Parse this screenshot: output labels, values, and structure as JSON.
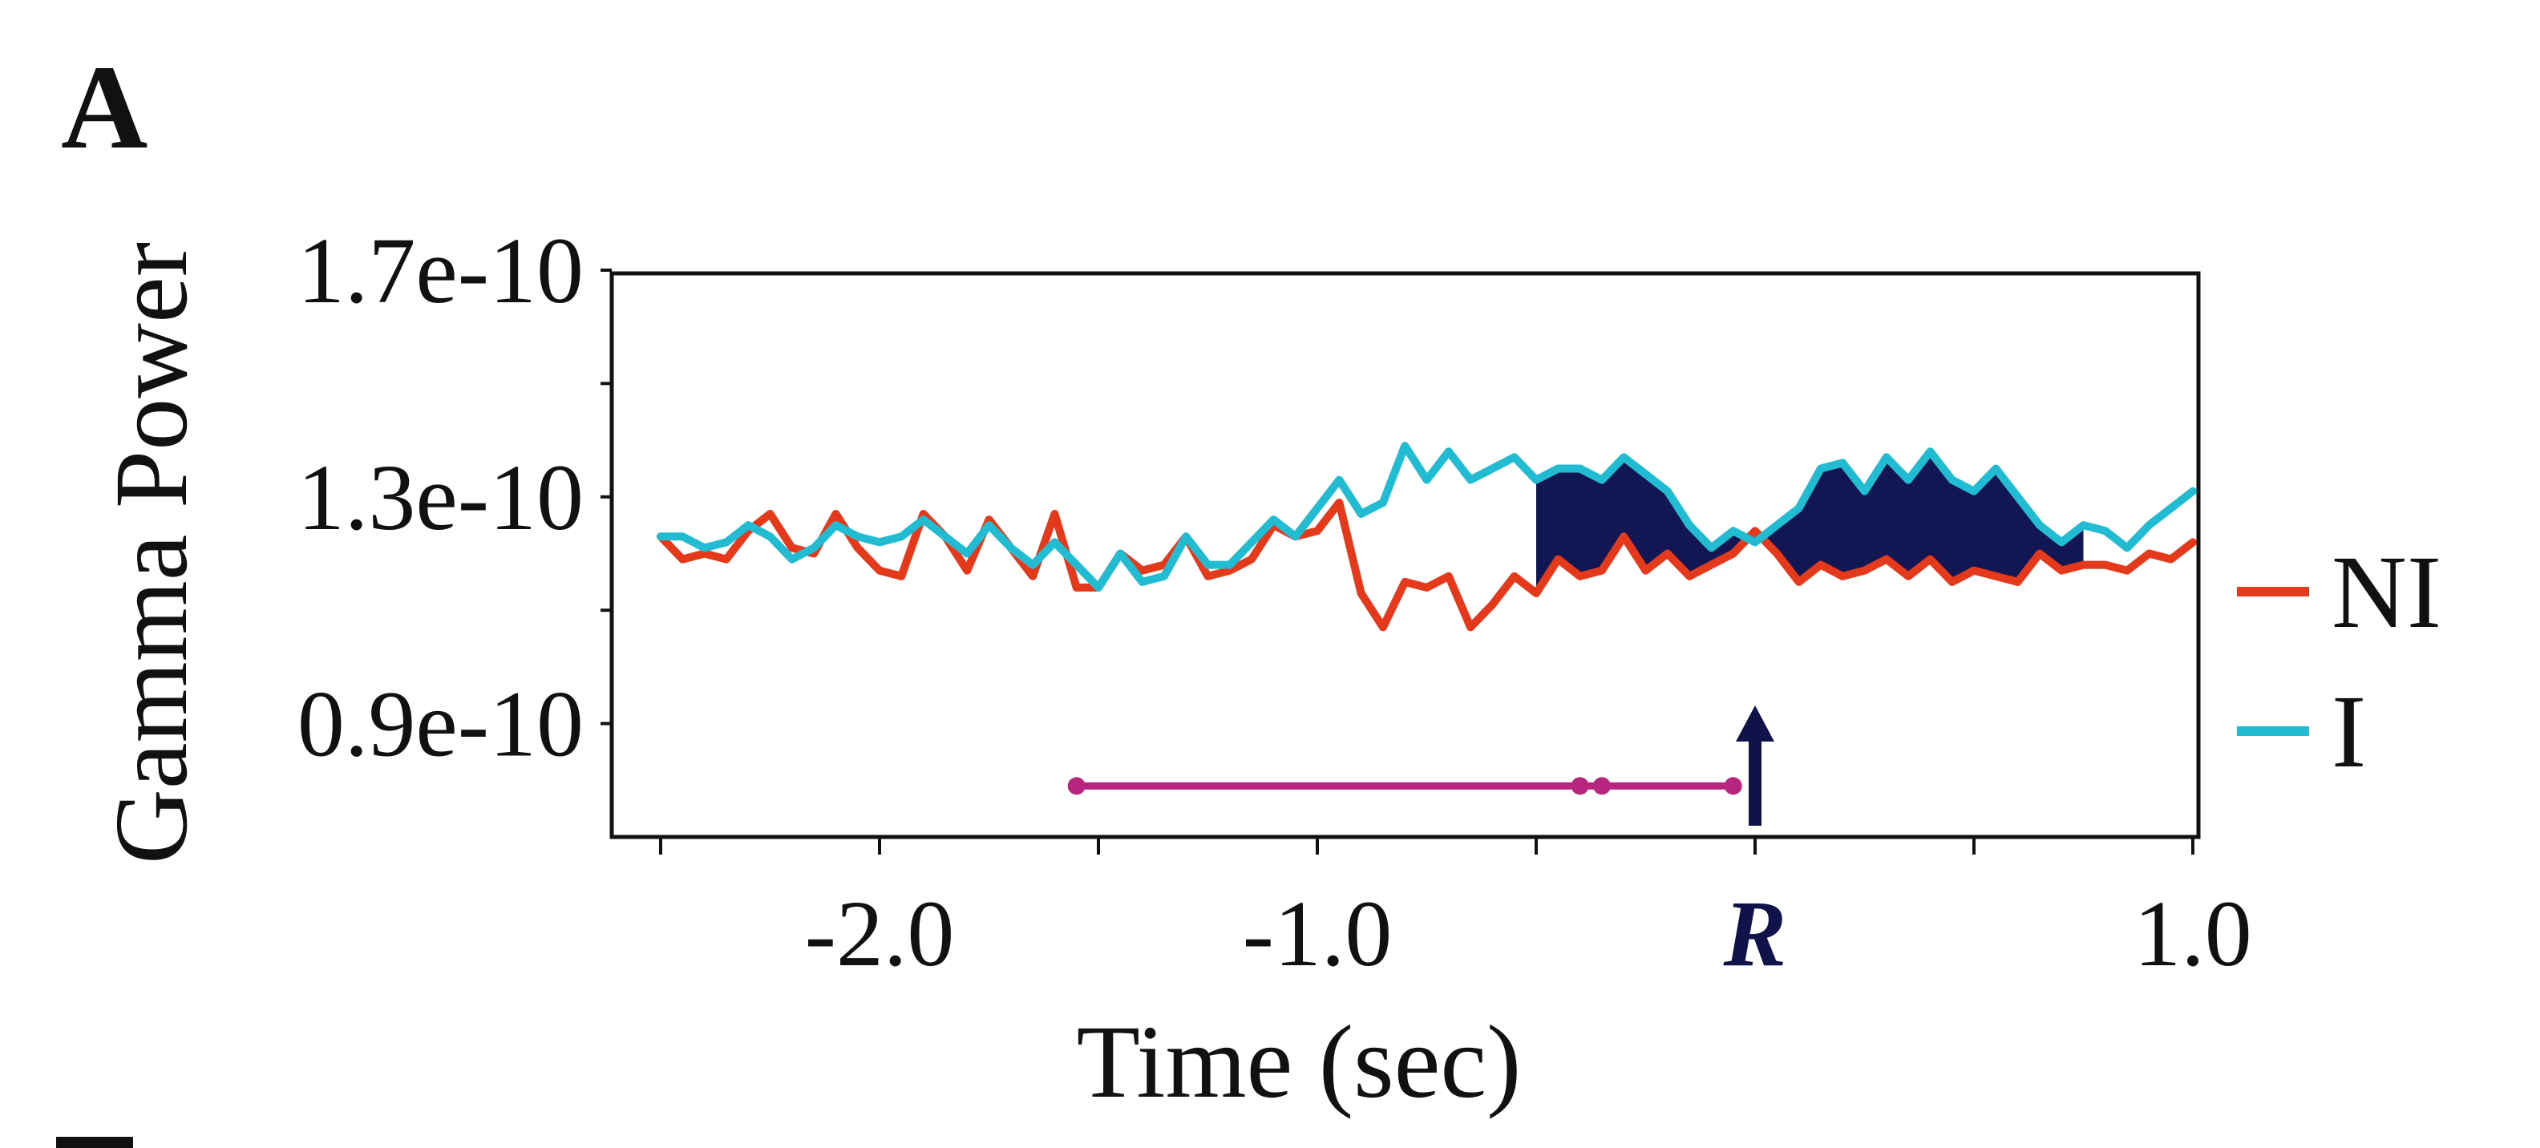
{
  "panel_label": "A",
  "chart_data": {
    "type": "line",
    "title": "",
    "xlabel": "Time (sec)",
    "ylabel": "Gamma Power",
    "xlim": [
      -2.5,
      1.0
    ],
    "ylim": [
      7e-11,
      1.7e-10
    ],
    "x_ticks": [
      -2.5,
      -2.0,
      -1.5,
      -1.0,
      -0.5,
      0.0,
      0.5,
      1.0
    ],
    "x_tick_labels": [
      "-2.0",
      "-1.0",
      "R",
      "1.0"
    ],
    "x_tick_label_values": [
      -2.0,
      -1.0,
      0.0,
      1.0
    ],
    "y_ticks": [
      9e-11,
      1.1e-10,
      1.3e-10,
      1.5e-10,
      1.7e-10
    ],
    "y_tick_labels": [
      "1.7e-10",
      "1.3e-10",
      "0.9e-10"
    ],
    "y_tick_label_values": [
      1.7e-10,
      1.3e-10,
      9e-11
    ],
    "legend": [
      "NI",
      "I"
    ],
    "legend_position": "right",
    "colors": {
      "NI": "#e5391c",
      "I": "#22bcd2",
      "fill": "#121652",
      "bar": "#b7257e",
      "arrow": "#10124a"
    },
    "series": [
      {
        "name": "NI",
        "x": [
          -2.5,
          -2.45,
          -2.4,
          -2.35,
          -2.3,
          -2.25,
          -2.2,
          -2.15,
          -2.1,
          -2.05,
          -2.0,
          -1.95,
          -1.9,
          -1.85,
          -1.8,
          -1.75,
          -1.7,
          -1.65,
          -1.6,
          -1.55,
          -1.5,
          -1.45,
          -1.4,
          -1.35,
          -1.3,
          -1.25,
          -1.2,
          -1.15,
          -1.1,
          -1.05,
          -1.0,
          -0.95,
          -0.9,
          -0.85,
          -0.8,
          -0.75,
          -0.7,
          -0.65,
          -0.6,
          -0.55,
          -0.5,
          -0.45,
          -0.4,
          -0.35,
          -0.3,
          -0.25,
          -0.2,
          -0.15,
          -0.1,
          -0.05,
          0.0,
          0.05,
          0.1,
          0.15,
          0.2,
          0.25,
          0.3,
          0.35,
          0.4,
          0.45,
          0.5,
          0.55,
          0.6,
          0.65,
          0.7,
          0.75,
          0.8,
          0.85,
          0.9,
          0.95,
          1.0
        ],
        "values": [
          1.23e-10,
          1.19e-10,
          1.2e-10,
          1.19e-10,
          1.24e-10,
          1.27e-10,
          1.21e-10,
          1.2e-10,
          1.27e-10,
          1.21e-10,
          1.17e-10,
          1.16e-10,
          1.27e-10,
          1.23e-10,
          1.17e-10,
          1.26e-10,
          1.21e-10,
          1.16e-10,
          1.27e-10,
          1.14e-10,
          1.14e-10,
          1.2e-10,
          1.17e-10,
          1.18e-10,
          1.23e-10,
          1.16e-10,
          1.17e-10,
          1.19e-10,
          1.25e-10,
          1.23e-10,
          1.24e-10,
          1.29e-10,
          1.13e-10,
          1.07e-10,
          1.15e-10,
          1.14e-10,
          1.16e-10,
          1.07e-10,
          1.11e-10,
          1.16e-10,
          1.13e-10,
          1.19e-10,
          1.16e-10,
          1.17e-10,
          1.23e-10,
          1.17e-10,
          1.2e-10,
          1.16e-10,
          1.18e-10,
          1.2e-10,
          1.24e-10,
          1.2e-10,
          1.15e-10,
          1.18e-10,
          1.16e-10,
          1.17e-10,
          1.19e-10,
          1.16e-10,
          1.19e-10,
          1.15e-10,
          1.17e-10,
          1.16e-10,
          1.15e-10,
          1.2e-10,
          1.17e-10,
          1.18e-10,
          1.18e-10,
          1.17e-10,
          1.2e-10,
          1.19e-10,
          1.22e-10
        ]
      },
      {
        "name": "I",
        "x": [
          -2.5,
          -2.45,
          -2.4,
          -2.35,
          -2.3,
          -2.25,
          -2.2,
          -2.15,
          -2.1,
          -2.05,
          -2.0,
          -1.95,
          -1.9,
          -1.85,
          -1.8,
          -1.75,
          -1.7,
          -1.65,
          -1.6,
          -1.55,
          -1.5,
          -1.45,
          -1.4,
          -1.35,
          -1.3,
          -1.25,
          -1.2,
          -1.15,
          -1.1,
          -1.05,
          -1.0,
          -0.95,
          -0.9,
          -0.85,
          -0.8,
          -0.75,
          -0.7,
          -0.65,
          -0.6,
          -0.55,
          -0.5,
          -0.45,
          -0.4,
          -0.35,
          -0.3,
          -0.25,
          -0.2,
          -0.15,
          -0.1,
          -0.05,
          0.0,
          0.05,
          0.1,
          0.15,
          0.2,
          0.25,
          0.3,
          0.35,
          0.4,
          0.45,
          0.5,
          0.55,
          0.6,
          0.65,
          0.7,
          0.75,
          0.8,
          0.85,
          0.9,
          0.95,
          1.0
        ],
        "values": [
          1.23e-10,
          1.23e-10,
          1.21e-10,
          1.22e-10,
          1.25e-10,
          1.23e-10,
          1.19e-10,
          1.21e-10,
          1.25e-10,
          1.23e-10,
          1.22e-10,
          1.23e-10,
          1.26e-10,
          1.23e-10,
          1.2e-10,
          1.25e-10,
          1.21e-10,
          1.18e-10,
          1.22e-10,
          1.18e-10,
          1.14e-10,
          1.2e-10,
          1.15e-10,
          1.16e-10,
          1.23e-10,
          1.18e-10,
          1.18e-10,
          1.22e-10,
          1.26e-10,
          1.23e-10,
          1.28e-10,
          1.33e-10,
          1.27e-10,
          1.29e-10,
          1.39e-10,
          1.33e-10,
          1.38e-10,
          1.33e-10,
          1.35e-10,
          1.37e-10,
          1.33e-10,
          1.35e-10,
          1.35e-10,
          1.33e-10,
          1.37e-10,
          1.34e-10,
          1.31e-10,
          1.25e-10,
          1.21e-10,
          1.24e-10,
          1.22e-10,
          1.25e-10,
          1.28e-10,
          1.35e-10,
          1.36e-10,
          1.31e-10,
          1.37e-10,
          1.33e-10,
          1.38e-10,
          1.33e-10,
          1.31e-10,
          1.35e-10,
          1.3e-10,
          1.25e-10,
          1.22e-10,
          1.25e-10,
          1.24e-10,
          1.21e-10,
          1.25e-10,
          1.28e-10,
          1.31e-10
        ]
      }
    ],
    "significance_fill": {
      "between": [
        "NI",
        "I"
      ],
      "x_range": [
        -0.5,
        0.75
      ]
    },
    "interval_bar": {
      "x_start": -1.55,
      "x_end": -0.05,
      "y": 7.9e-11,
      "markers_x": [
        -1.55,
        -0.4,
        -0.35,
        -0.05
      ]
    },
    "response_marker": {
      "label": "R",
      "x": 0.0
    }
  }
}
